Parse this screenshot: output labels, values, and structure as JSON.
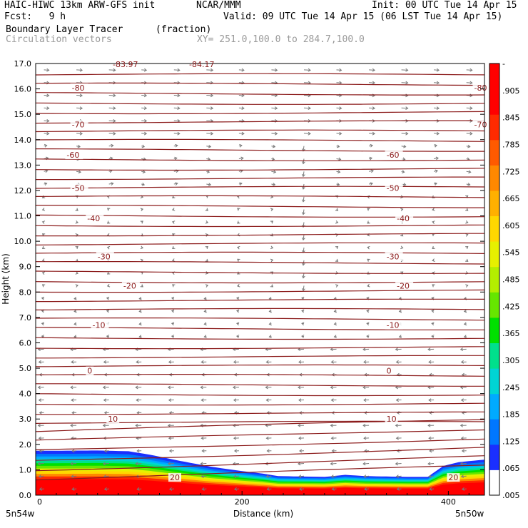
{
  "header": {
    "model": "HAIC-HIWC 13km ARW-GFS init",
    "org": "NCAR/MMM",
    "init": "Init: 00 UTC Tue 14 Apr 15",
    "fcst": "Fcst:   9 h",
    "valid": "Valid: 09 UTC Tue 14 Apr 15 (06 LST Tue 14 Apr 15)",
    "field": "Boundary Layer Tracer",
    "units": "(fraction)",
    "vectors": "Circulation vectors",
    "xy": "XY= 251.0,100.0 to 284.7,100.0"
  },
  "colors": {
    "contour": "#8b1a1a",
    "vector": "#7a7a7a",
    "colorbar": [
      "#ffffff",
      "#1a2fff",
      "#0077ff",
      "#00aaff",
      "#00d4d4",
      "#00e08c",
      "#00e000",
      "#66e600",
      "#b4ee00",
      "#e6f000",
      "#ffd700",
      "#ffb000",
      "#ff8800",
      "#ff5a00",
      "#ff2a00",
      "#ff0000",
      "#ff0000"
    ]
  },
  "chart_data": {
    "type": "heatmap",
    "title": "Boundary Layer Tracer",
    "xlabel": "Distance (km)",
    "ylabel": "Height (km)",
    "xlim": [
      0,
      435
    ],
    "ylim": [
      0,
      17
    ],
    "x_ticks": [
      0,
      200,
      400
    ],
    "y_ticks": [
      "0.0",
      "1.0",
      "2.0",
      "3.0",
      "4.0",
      "5.0",
      "6.0",
      "7.0",
      "8.0",
      "9.0",
      "10.0",
      "11.0",
      "12.0",
      "13.0",
      "14.0",
      "15.0",
      "16.0",
      "17.0"
    ],
    "x_end_labels": [
      "5n54w",
      "5n50w"
    ],
    "colorbar_labels": [
      ".005",
      ".065",
      ".125",
      ".185",
      ".245",
      ".305",
      ".365",
      ".425",
      ".485",
      ".545",
      ".605",
      ".665",
      ".725",
      ".785",
      ".845",
      ".905",
      "-"
    ],
    "tracer_top_km": [
      [
        0,
        1.75
      ],
      [
        20,
        1.75
      ],
      [
        60,
        1.76
      ],
      [
        90,
        1.73
      ],
      [
        110,
        1.6
      ],
      [
        140,
        1.35
      ],
      [
        170,
        1.12
      ],
      [
        200,
        0.95
      ],
      [
        220,
        0.85
      ],
      [
        235,
        0.75
      ],
      [
        280,
        0.72
      ],
      [
        300,
        0.8
      ],
      [
        320,
        0.75
      ],
      [
        360,
        0.72
      ],
      [
        380,
        0.72
      ],
      [
        395,
        1.15
      ],
      [
        410,
        1.3
      ],
      [
        435,
        1.4
      ]
    ],
    "temperature_contours_c": [
      {
        "label": "-80",
        "y": 16.05,
        "label_x": [
          35,
          425
        ]
      },
      {
        "label": "-70",
        "y": 14.6,
        "label_x": [
          35,
          425
        ]
      },
      {
        "label": "-60",
        "y": 13.4,
        "label_x": [
          30,
          340
        ]
      },
      {
        "label": "-50",
        "y": 12.1,
        "label_x": [
          35,
          340
        ]
      },
      {
        "label": "-40",
        "y": 10.9,
        "label_x": [
          50,
          350
        ]
      },
      {
        "label": "-30",
        "y": 9.4,
        "label_x": [
          60,
          340
        ]
      },
      {
        "label": "-20",
        "y": 8.25,
        "label_x": [
          85,
          350
        ]
      },
      {
        "label": "-10",
        "y": 6.7,
        "label_x": [
          55,
          340
        ]
      },
      {
        "label": "0",
        "y": 4.9,
        "label_x": [
          50,
          340
        ]
      },
      {
        "label": "10",
        "y": 3.0,
        "label_x": [
          70,
          340
        ]
      },
      {
        "label": "20",
        "y": 0.7,
        "label_x": [
          130,
          400
        ]
      }
    ],
    "top_partial_labels": [
      "-83.97",
      "-84.17"
    ]
  }
}
